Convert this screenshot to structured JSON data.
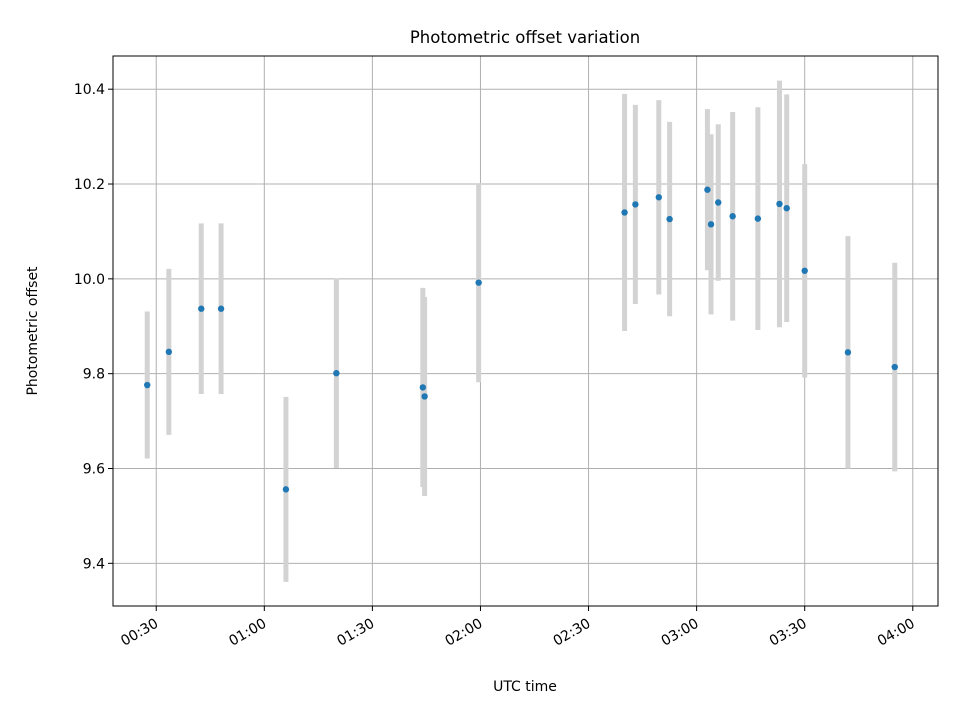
{
  "chart_data": {
    "type": "scatter",
    "title": "Photometric offset variation",
    "xlabel": "UTC time",
    "ylabel": "Photometric offset",
    "grid": true,
    "legend": "none",
    "xlim": [
      "00:18",
      "04:07"
    ],
    "ylim": [
      9.31,
      10.47
    ],
    "xticks": [
      "00:30",
      "01:00",
      "01:30",
      "02:00",
      "02:30",
      "03:00",
      "03:30",
      "04:00"
    ],
    "yticks": [
      "9.4",
      "9.6",
      "9.8",
      "10.0",
      "10.2",
      "10.4"
    ],
    "colors": {
      "point": "#1f77b4",
      "errorbar": "#d3d3d3",
      "grid": "#b0b0b0"
    },
    "points": [
      {
        "x": "00:27:30",
        "y": 9.776,
        "yerr": 0.155
      },
      {
        "x": "00:33:30",
        "y": 9.846,
        "yerr": 0.175
      },
      {
        "x": "00:42:30",
        "y": 9.937,
        "yerr": 0.18
      },
      {
        "x": "00:48:00",
        "y": 9.937,
        "yerr": 0.18
      },
      {
        "x": "01:06:00",
        "y": 9.556,
        "yerr": 0.195
      },
      {
        "x": "01:20:00",
        "y": 9.801,
        "yerr": 0.2
      },
      {
        "x": "01:44:00",
        "y": 9.771,
        "yerr": 0.21
      },
      {
        "x": "01:44:30",
        "y": 9.752,
        "yerr": 0.21
      },
      {
        "x": "01:59:30",
        "y": 9.992,
        "yerr": 0.21
      },
      {
        "x": "02:40:00",
        "y": 10.14,
        "yerr": 0.25
      },
      {
        "x": "02:43:00",
        "y": 10.157,
        "yerr": 0.21
      },
      {
        "x": "02:49:30",
        "y": 10.172,
        "yerr": 0.205
      },
      {
        "x": "02:52:30",
        "y": 10.126,
        "yerr": 0.205
      },
      {
        "x": "03:03:00",
        "y": 10.188,
        "yerr": 0.17
      },
      {
        "x": "03:04:00",
        "y": 10.115,
        "yerr": 0.19
      },
      {
        "x": "03:06:00",
        "y": 10.161,
        "yerr": 0.165
      },
      {
        "x": "03:10:00",
        "y": 10.132,
        "yerr": 0.22
      },
      {
        "x": "03:17:00",
        "y": 10.127,
        "yerr": 0.235
      },
      {
        "x": "03:23:00",
        "y": 10.158,
        "yerr": 0.26
      },
      {
        "x": "03:25:00",
        "y": 10.149,
        "yerr": 0.24
      },
      {
        "x": "03:30:00",
        "y": 10.017,
        "yerr": 0.225
      },
      {
        "x": "03:42:00",
        "y": 9.845,
        "yerr": 0.245
      },
      {
        "x": "03:55:00",
        "y": 9.814,
        "yerr": 0.22
      }
    ]
  }
}
